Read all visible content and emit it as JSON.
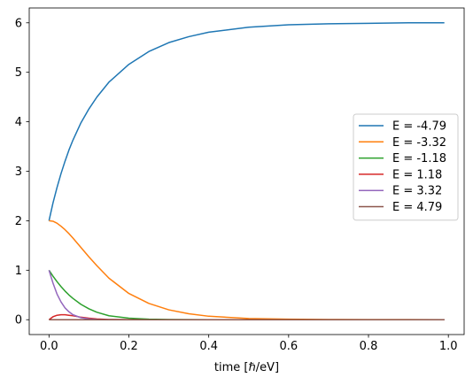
{
  "chart_data": {
    "type": "line",
    "title": "",
    "xlabel": "time [ℏ/eV]",
    "ylabel": "",
    "xlim": [
      -0.0495,
      1.0395
    ],
    "ylim": [
      -0.3,
      6.3
    ],
    "xticks": [
      0.0,
      0.2,
      0.4,
      0.6,
      0.8,
      1.0
    ],
    "xtick_labels": [
      "0.0",
      "0.2",
      "0.4",
      "0.6",
      "0.8",
      "1.0"
    ],
    "yticks": [
      0,
      1,
      2,
      3,
      4,
      5,
      6
    ],
    "ytick_labels": [
      "0",
      "1",
      "2",
      "3",
      "4",
      "5",
      "6"
    ],
    "grid": false,
    "legend": "center-right",
    "x": [
      0.0,
      0.01,
      0.02,
      0.03,
      0.04,
      0.05,
      0.06,
      0.08,
      0.1,
      0.12,
      0.15,
      0.2,
      0.25,
      0.3,
      0.35,
      0.4,
      0.5,
      0.6,
      0.7,
      0.8,
      0.9,
      0.99
    ],
    "series": [
      {
        "name": "E = -4.79",
        "color": "#1f77b4",
        "values": [
          2.0,
          2.36,
          2.67,
          2.95,
          3.2,
          3.43,
          3.63,
          3.98,
          4.26,
          4.5,
          4.8,
          5.16,
          5.42,
          5.6,
          5.72,
          5.81,
          5.91,
          5.96,
          5.98,
          5.99,
          6.0,
          6.0
        ]
      },
      {
        "name": "E = -3.32",
        "color": "#ff7f0e",
        "values": [
          2.0,
          1.99,
          1.95,
          1.89,
          1.82,
          1.74,
          1.65,
          1.46,
          1.27,
          1.09,
          0.84,
          0.53,
          0.33,
          0.2,
          0.12,
          0.07,
          0.025,
          0.01,
          0.004,
          0.002,
          0.001,
          0.0
        ]
      },
      {
        "name": "E = -1.18",
        "color": "#2ca02c",
        "values": [
          1.0,
          0.88,
          0.77,
          0.67,
          0.58,
          0.5,
          0.43,
          0.31,
          0.22,
          0.15,
          0.08,
          0.03,
          0.01,
          0.004,
          0.001,
          0.0,
          0.0,
          0.0,
          0.0,
          0.0,
          0.0,
          0.0
        ]
      },
      {
        "name": "E = 1.18",
        "color": "#d62728",
        "values": [
          0.0,
          0.06,
          0.09,
          0.1,
          0.1,
          0.09,
          0.08,
          0.05,
          0.03,
          0.015,
          0.005,
          0.001,
          0.0,
          0.0,
          0.0,
          0.0,
          0.0,
          0.0,
          0.0,
          0.0,
          0.0,
          0.0
        ]
      },
      {
        "name": "E = 3.32",
        "color": "#9467bd",
        "values": [
          1.0,
          0.74,
          0.52,
          0.36,
          0.24,
          0.16,
          0.1,
          0.04,
          0.015,
          0.005,
          0.001,
          0.0,
          0.0,
          0.0,
          0.0,
          0.0,
          0.0,
          0.0,
          0.0,
          0.0,
          0.0,
          0.0
        ]
      },
      {
        "name": "E = 4.79",
        "color": "#8c564b",
        "values": [
          0.0,
          0.0,
          0.0,
          0.0,
          0.0,
          0.0,
          0.0,
          0.0,
          0.0,
          0.0,
          0.0,
          0.0,
          0.0,
          0.0,
          0.0,
          0.0,
          0.0,
          0.0,
          0.0,
          0.0,
          0.0,
          0.0
        ]
      }
    ]
  }
}
